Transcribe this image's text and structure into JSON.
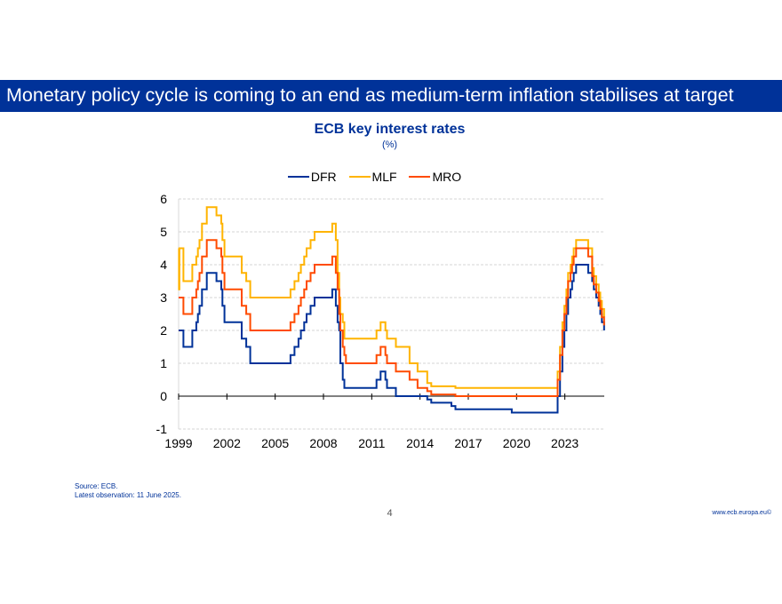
{
  "slide": {
    "headline": "Monetary policy cycle is coming to an end as medium-term inflation stabilises at target",
    "source": "Source: ECB.",
    "latest_observation": "Latest observation: 11 June 2025.",
    "page_number": "4",
    "website": "www.ecb.europa.eu©"
  },
  "chart_data": {
    "type": "line",
    "title": "ECB key interest rates",
    "subtitle": "(%)",
    "xlabel": "",
    "ylabel": "",
    "xlim": [
      1999.0,
      2025.45
    ],
    "ylim": [
      -1,
      6
    ],
    "x_ticks": [
      "1999",
      "2002",
      "2005",
      "2008",
      "2011",
      "2014",
      "2017",
      "2020",
      "2023"
    ],
    "y_ticks": [
      "6",
      "5",
      "4",
      "3",
      "2",
      "1",
      "0",
      "-1"
    ],
    "grid": "horizontal dashed",
    "legend_position": "top-center",
    "series": [
      {
        "name": "DFR",
        "color": "#003299",
        "step_points": [
          [
            1999.0,
            2.0
          ],
          [
            1999.3,
            1.5
          ],
          [
            1999.85,
            2.0
          ],
          [
            2000.1,
            2.25
          ],
          [
            2000.2,
            2.5
          ],
          [
            2000.3,
            2.75
          ],
          [
            2000.45,
            3.25
          ],
          [
            2000.75,
            3.75
          ],
          [
            2001.35,
            3.5
          ],
          [
            2001.65,
            3.25
          ],
          [
            2001.72,
            2.75
          ],
          [
            2001.85,
            2.25
          ],
          [
            2002.92,
            1.75
          ],
          [
            2003.2,
            1.5
          ],
          [
            2003.45,
            1.0
          ],
          [
            2005.95,
            1.25
          ],
          [
            2006.2,
            1.5
          ],
          [
            2006.45,
            1.75
          ],
          [
            2006.6,
            2.0
          ],
          [
            2006.8,
            2.25
          ],
          [
            2006.95,
            2.5
          ],
          [
            2007.2,
            2.75
          ],
          [
            2007.45,
            3.0
          ],
          [
            2008.55,
            3.25
          ],
          [
            2008.77,
            2.75
          ],
          [
            2008.88,
            2.25
          ],
          [
            2008.98,
            2.0
          ],
          [
            2009.05,
            1.0
          ],
          [
            2009.2,
            0.5
          ],
          [
            2009.3,
            0.25
          ],
          [
            2011.3,
            0.5
          ],
          [
            2011.55,
            0.75
          ],
          [
            2011.85,
            0.5
          ],
          [
            2011.95,
            0.25
          ],
          [
            2012.5,
            0.0
          ],
          [
            2014.45,
            -0.1
          ],
          [
            2014.7,
            -0.2
          ],
          [
            2015.95,
            -0.3
          ],
          [
            2016.2,
            -0.4
          ],
          [
            2019.7,
            -0.5
          ],
          [
            2022.55,
            0.0
          ],
          [
            2022.7,
            0.75
          ],
          [
            2022.85,
            1.5
          ],
          [
            2022.97,
            2.0
          ],
          [
            2023.1,
            2.5
          ],
          [
            2023.2,
            3.0
          ],
          [
            2023.35,
            3.25
          ],
          [
            2023.45,
            3.5
          ],
          [
            2023.55,
            3.75
          ],
          [
            2023.7,
            4.0
          ],
          [
            2024.45,
            3.75
          ],
          [
            2024.7,
            3.5
          ],
          [
            2024.8,
            3.25
          ],
          [
            2024.95,
            3.0
          ],
          [
            2025.1,
            2.75
          ],
          [
            2025.2,
            2.5
          ],
          [
            2025.3,
            2.25
          ],
          [
            2025.44,
            2.0
          ]
        ]
      },
      {
        "name": "MLF",
        "color": "#ffb400",
        "step_points": [
          [
            1999.0,
            4.5
          ],
          [
            1999.02,
            3.25
          ],
          [
            1999.05,
            4.5
          ],
          [
            1999.3,
            3.5
          ],
          [
            1999.85,
            4.0
          ],
          [
            2000.1,
            4.25
          ],
          [
            2000.2,
            4.5
          ],
          [
            2000.3,
            4.75
          ],
          [
            2000.45,
            5.25
          ],
          [
            2000.75,
            5.75
          ],
          [
            2001.35,
            5.5
          ],
          [
            2001.65,
            5.25
          ],
          [
            2001.72,
            4.75
          ],
          [
            2001.85,
            4.25
          ],
          [
            2002.92,
            3.75
          ],
          [
            2003.2,
            3.5
          ],
          [
            2003.45,
            3.0
          ],
          [
            2005.95,
            3.25
          ],
          [
            2006.2,
            3.5
          ],
          [
            2006.45,
            3.75
          ],
          [
            2006.6,
            4.0
          ],
          [
            2006.8,
            4.25
          ],
          [
            2006.95,
            4.5
          ],
          [
            2007.2,
            4.75
          ],
          [
            2007.45,
            5.0
          ],
          [
            2008.55,
            5.25
          ],
          [
            2008.77,
            4.75
          ],
          [
            2008.88,
            3.75
          ],
          [
            2008.98,
            3.0
          ],
          [
            2009.05,
            2.5
          ],
          [
            2009.2,
            2.25
          ],
          [
            2009.3,
            1.75
          ],
          [
            2011.3,
            2.0
          ],
          [
            2011.55,
            2.25
          ],
          [
            2011.85,
            2.0
          ],
          [
            2011.95,
            1.75
          ],
          [
            2012.5,
            1.5
          ],
          [
            2013.35,
            1.0
          ],
          [
            2013.85,
            0.75
          ],
          [
            2014.45,
            0.4
          ],
          [
            2014.7,
            0.3
          ],
          [
            2016.2,
            0.25
          ],
          [
            2022.55,
            0.75
          ],
          [
            2022.7,
            1.5
          ],
          [
            2022.85,
            2.25
          ],
          [
            2022.97,
            2.75
          ],
          [
            2023.1,
            3.25
          ],
          [
            2023.2,
            3.75
          ],
          [
            2023.35,
            4.0
          ],
          [
            2023.45,
            4.25
          ],
          [
            2023.55,
            4.5
          ],
          [
            2023.7,
            4.75
          ],
          [
            2024.45,
            4.5
          ],
          [
            2024.7,
            3.9
          ],
          [
            2024.8,
            3.65
          ],
          [
            2024.95,
            3.4
          ],
          [
            2025.1,
            3.15
          ],
          [
            2025.2,
            2.9
          ],
          [
            2025.3,
            2.65
          ],
          [
            2025.44,
            2.4
          ]
        ]
      },
      {
        "name": "MRO",
        "color": "#ff4b00",
        "step_points": [
          [
            1999.0,
            3.0
          ],
          [
            1999.3,
            2.5
          ],
          [
            1999.85,
            3.0
          ],
          [
            2000.1,
            3.25
          ],
          [
            2000.2,
            3.5
          ],
          [
            2000.3,
            3.75
          ],
          [
            2000.45,
            4.25
          ],
          [
            2000.75,
            4.75
          ],
          [
            2001.35,
            4.5
          ],
          [
            2001.65,
            4.25
          ],
          [
            2001.72,
            3.75
          ],
          [
            2001.85,
            3.25
          ],
          [
            2002.92,
            2.75
          ],
          [
            2003.2,
            2.5
          ],
          [
            2003.45,
            2.0
          ],
          [
            2005.95,
            2.25
          ],
          [
            2006.2,
            2.5
          ],
          [
            2006.45,
            2.75
          ],
          [
            2006.6,
            3.0
          ],
          [
            2006.8,
            3.25
          ],
          [
            2006.95,
            3.5
          ],
          [
            2007.2,
            3.75
          ],
          [
            2007.45,
            4.0
          ],
          [
            2008.55,
            4.25
          ],
          [
            2008.77,
            3.75
          ],
          [
            2008.88,
            3.25
          ],
          [
            2008.98,
            2.5
          ],
          [
            2009.05,
            2.0
          ],
          [
            2009.2,
            1.5
          ],
          [
            2009.3,
            1.25
          ],
          [
            2009.4,
            1.0
          ],
          [
            2011.3,
            1.25
          ],
          [
            2011.55,
            1.5
          ],
          [
            2011.85,
            1.25
          ],
          [
            2011.95,
            1.0
          ],
          [
            2012.5,
            0.75
          ],
          [
            2013.35,
            0.5
          ],
          [
            2013.85,
            0.25
          ],
          [
            2014.45,
            0.15
          ],
          [
            2014.7,
            0.05
          ],
          [
            2016.2,
            0.0
          ],
          [
            2022.55,
            0.5
          ],
          [
            2022.7,
            1.25
          ],
          [
            2022.85,
            2.0
          ],
          [
            2022.97,
            2.5
          ],
          [
            2023.1,
            3.0
          ],
          [
            2023.2,
            3.5
          ],
          [
            2023.35,
            3.75
          ],
          [
            2023.45,
            4.0
          ],
          [
            2023.55,
            4.25
          ],
          [
            2023.7,
            4.5
          ],
          [
            2024.45,
            4.25
          ],
          [
            2024.7,
            3.65
          ],
          [
            2024.8,
            3.4
          ],
          [
            2024.95,
            3.15
          ],
          [
            2025.1,
            2.9
          ],
          [
            2025.2,
            2.65
          ],
          [
            2025.3,
            2.4
          ],
          [
            2025.44,
            2.15
          ]
        ]
      }
    ]
  }
}
